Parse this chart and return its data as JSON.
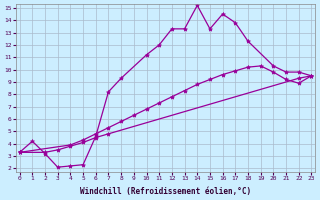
{
  "background_color": "#cceeff",
  "grid_color": "#aabbcc",
  "line_color": "#990099",
  "marker": "*",
  "xlabel": "Windchill (Refroidissement éolien,°C)",
  "ylim": [
    2,
    15
  ],
  "xlim": [
    0,
    23
  ],
  "yticks": [
    2,
    3,
    4,
    5,
    6,
    7,
    8,
    9,
    10,
    11,
    12,
    13,
    14,
    15
  ],
  "xticks": [
    0,
    1,
    2,
    3,
    4,
    5,
    6,
    7,
    8,
    9,
    10,
    11,
    12,
    13,
    14,
    15,
    16,
    17,
    18,
    19,
    20,
    21,
    22,
    23
  ],
  "series1_x": [
    0,
    1,
    2,
    3,
    4,
    5,
    6,
    7,
    8,
    10,
    11,
    12,
    13,
    14,
    15,
    16,
    17,
    18,
    20,
    21,
    22,
    23
  ],
  "series1_y": [
    3.3,
    4.2,
    3.2,
    2.1,
    2.2,
    2.3,
    4.6,
    8.2,
    9.3,
    11.2,
    12.0,
    13.3,
    13.3,
    15.2,
    13.3,
    14.5,
    13.8,
    12.3,
    10.3,
    9.8,
    9.8,
    9.5
  ],
  "series2_x": [
    0,
    2,
    3,
    4,
    5,
    6,
    7,
    22,
    23
  ],
  "series2_y": [
    3.3,
    3.3,
    3.5,
    3.8,
    4.1,
    4.5,
    4.8,
    9.3,
    9.5
  ],
  "series3_x": [
    0,
    4,
    5,
    6,
    7,
    8,
    9,
    10,
    11,
    12,
    13,
    14,
    15,
    16,
    17,
    18,
    19,
    20,
    21,
    22,
    23
  ],
  "series3_y": [
    3.3,
    3.9,
    4.3,
    4.8,
    5.3,
    5.8,
    6.3,
    6.8,
    7.3,
    7.8,
    8.3,
    8.8,
    9.2,
    9.6,
    9.9,
    10.2,
    10.3,
    9.8,
    9.2,
    8.9,
    9.5
  ]
}
